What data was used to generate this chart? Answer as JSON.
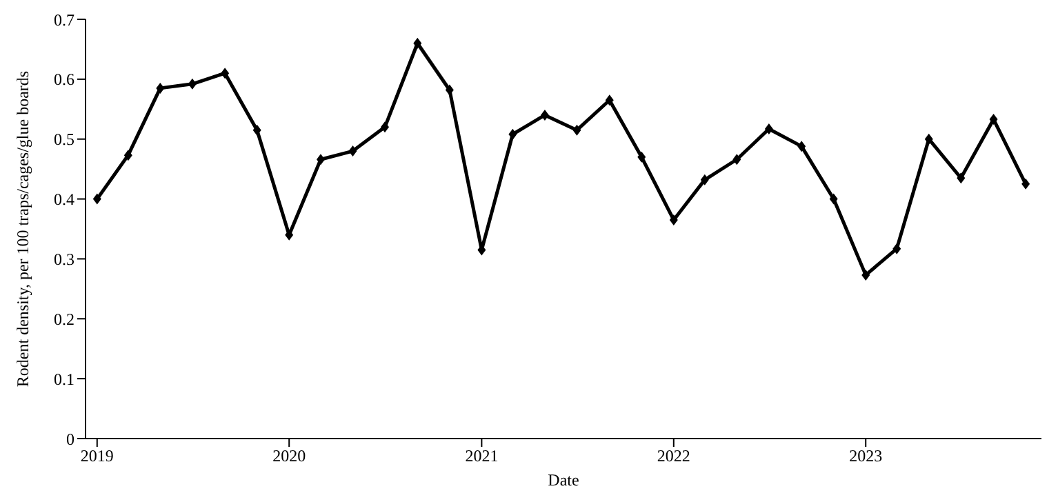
{
  "chart_data": {
    "type": "line",
    "xlabel": "Date",
    "ylabel": "Rodent density, per 100 traps/cages/glue boards",
    "x": [
      "2019-01",
      "2019-03",
      "2019-05",
      "2019-07",
      "2019-09",
      "2019-11",
      "2020-01",
      "2020-03",
      "2020-05",
      "2020-07",
      "2020-09",
      "2020-11",
      "2021-01",
      "2021-03",
      "2021-05",
      "2021-07",
      "2021-09",
      "2021-11",
      "2022-01",
      "2022-03",
      "2022-05",
      "2022-07",
      "2022-09",
      "2022-11",
      "2023-01",
      "2023-03",
      "2023-05",
      "2023-07",
      "2023-09",
      "2023-11"
    ],
    "series": [
      {
        "color": "#000000",
        "values": [
          0.4,
          0.473,
          0.585,
          0.592,
          0.61,
          0.515,
          0.34,
          0.466,
          0.48,
          0.52,
          0.66,
          0.582,
          0.315,
          0.508,
          0.54,
          0.515,
          0.565,
          0.47,
          0.365,
          0.432,
          0.466,
          0.517,
          0.488,
          0.4,
          0.273,
          0.317,
          0.5,
          0.435,
          0.533,
          0.425
        ]
      }
    ],
    "xlim": [
      "2018-12-10",
      "2023-12-01"
    ],
    "xticks": [
      {
        "value": "2019-01",
        "label": "2019"
      },
      {
        "value": "2020-01",
        "label": "2020"
      },
      {
        "value": "2021-01",
        "label": "2021"
      },
      {
        "value": "2022-01",
        "label": "2022"
      },
      {
        "value": "2023-01",
        "label": "2023"
      }
    ],
    "ylim": [
      0,
      0.7
    ],
    "yticks": [
      0,
      0.1,
      0.2,
      0.3,
      0.4,
      0.5,
      0.6,
      0.7
    ],
    "grid": false,
    "legend": false,
    "marker": "diamond",
    "line_style": "solid"
  }
}
